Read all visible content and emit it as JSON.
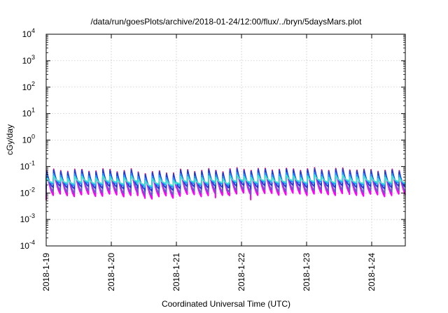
{
  "chart_data": {
    "type": "line",
    "title": "/data/run/goesPlots/archive/2018-01-24/12:00/flux/../bryn/5daysMars.plot",
    "xlabel": "Coordinated Universal Time (UTC)",
    "ylabel": "cGy/day",
    "y_scale": "log",
    "ylim_exponents": [
      -4,
      4
    ],
    "y_ticks": [
      {
        "base": "10",
        "exp": "4"
      },
      {
        "base": "10",
        "exp": "3"
      },
      {
        "base": "10",
        "exp": "2"
      },
      {
        "base": "10",
        "exp": "1"
      },
      {
        "base": "10",
        "exp": "0"
      },
      {
        "base": "10",
        "exp": "-1"
      },
      {
        "base": "10",
        "exp": "-2"
      },
      {
        "base": "10",
        "exp": "-3"
      },
      {
        "base": "10",
        "exp": "-4"
      }
    ],
    "x_ticks": [
      "2018-1-19",
      "2018-1-20",
      "2018-1-21",
      "2018-1-22",
      "2018-1-23",
      "2018-1-24"
    ],
    "x_range_days": [
      "2018-01-19T00:00",
      "2018-01-24T12:00"
    ],
    "grid": true,
    "series": [
      {
        "color": "#e0006e",
        "baseline_cGy_day": 0.0053,
        "peak_cGy_day": 0.075
      },
      {
        "color": "#ff00ff",
        "baseline_cGy_day": 0.0058,
        "peak_cGy_day": 0.062
      },
      {
        "color": "#6a5acd",
        "baseline_cGy_day": 0.0085,
        "peak_cGy_day": 0.07
      },
      {
        "color": "#1e3cd2",
        "baseline_cGy_day": 0.014,
        "peak_cGy_day": 0.068
      },
      {
        "color": "#1e90ff",
        "baseline_cGy_day": 0.02,
        "peak_cGy_day": 0.05
      },
      {
        "color": "#40e0d0",
        "baseline_cGy_day": 0.024,
        "peak_cGy_day": 0.04
      }
    ],
    "pulse_period_hours": 2.6
  }
}
